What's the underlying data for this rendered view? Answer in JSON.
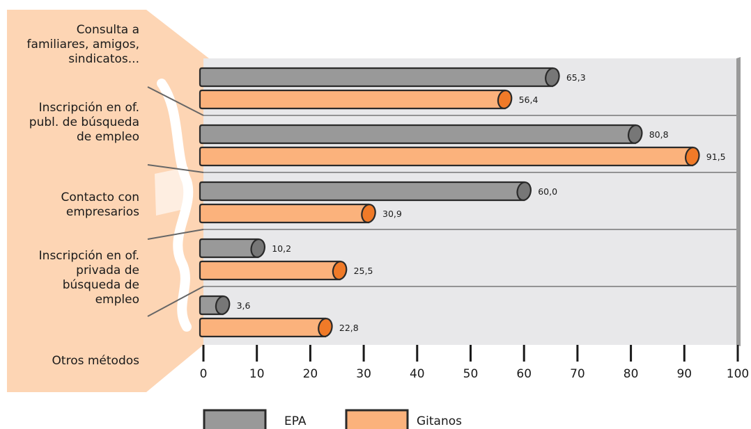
{
  "chart_data": {
    "type": "bar",
    "orientation": "horizontal",
    "categories": [
      "Consulta a familiares, amigos, sindicatos...",
      "Inscripción en of. publ. de búsqueda de empleo",
      "Contacto con empresarios",
      "Inscripción en of. privada de búsqueda de empleo",
      "Otros métodos"
    ],
    "category_lines": [
      [
        "Consulta a",
        "familiares, amigos,",
        "sindicatos..."
      ],
      [
        "Inscripción en of.",
        "publ. de búsqueda",
        "de empleo"
      ],
      [
        "Contacto con",
        "empresarios"
      ],
      [
        "Inscripción en of.",
        "privada de",
        "búsqueda de",
        "empleo"
      ],
      [
        "Otros métodos"
      ]
    ],
    "series": [
      {
        "name": "EPA",
        "values": [
          65.3,
          80.8,
          60.0,
          10.2,
          3.6
        ],
        "labels": [
          "65,3",
          "80,8",
          "60,0",
          "10,2",
          "3,6"
        ]
      },
      {
        "name": "Gitanos",
        "values": [
          56.4,
          91.5,
          30.9,
          25.5,
          22.8
        ],
        "labels": [
          "56,4",
          "91,5",
          "30,9",
          "25,5",
          "22,8"
        ]
      }
    ],
    "xlim": [
      0,
      100
    ],
    "xticks": [
      "0",
      "10",
      "20",
      "30",
      "40",
      "50",
      "60",
      "70",
      "80",
      "90",
      "100"
    ],
    "title": "",
    "xlabel": "",
    "ylabel": "",
    "grid": false,
    "legend_position": "bottom",
    "colors": {
      "EPA_fill": "#999999",
      "EPA_cap": "#777777",
      "Gitanos_fill": "#fbb27c",
      "Gitanos_cap": "#f07a28",
      "panel": "#e8e8ea",
      "label_panel": "#fdd5b4",
      "outline": "#2a2a2a"
    }
  }
}
